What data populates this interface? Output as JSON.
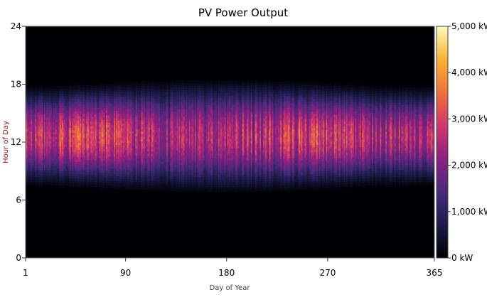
{
  "chart_data": {
    "type": "heatmap",
    "title": "PV Power Output",
    "xlabel": "Day of Year",
    "ylabel": "Hour of Day",
    "xlim": [
      1,
      365
    ],
    "ylim": [
      0,
      24
    ],
    "x_ticks": [
      "1",
      "90",
      "180",
      "270",
      "365"
    ],
    "x_tick_values": [
      1,
      90,
      180,
      270,
      365
    ],
    "y_ticks": [
      "0",
      "6",
      "12",
      "18",
      "24"
    ],
    "y_tick_values": [
      0,
      6,
      12,
      18,
      24
    ],
    "colorbar": {
      "min": 0,
      "max": 5000,
      "unit": "kW",
      "tick_labels": [
        "0 kW",
        "1,000 kW",
        "2,000 kW",
        "3,000 kW",
        "4,000 kW",
        "5,000 kW"
      ],
      "tick_values": [
        0,
        1000,
        2000,
        3000,
        4000,
        5000
      ],
      "colors": [
        "#000004",
        "#1c1c4a",
        "#4a2a7c",
        "#8c1f80",
        "#d0366b",
        "#f0703a",
        "#f9b233",
        "#fcfdbf"
      ]
    },
    "daylight_start_hour": 6.5,
    "daylight_end_hour": 18.5,
    "peak_hour": 12.5,
    "peak_output_kw": 4300,
    "monthly_peak_kw": [
      3800,
      4300,
      4200,
      3600,
      3400,
      3500,
      3800,
      3900,
      4100,
      4000,
      3700,
      3500
    ],
    "grid": false,
    "legend": "colorbar-right"
  }
}
